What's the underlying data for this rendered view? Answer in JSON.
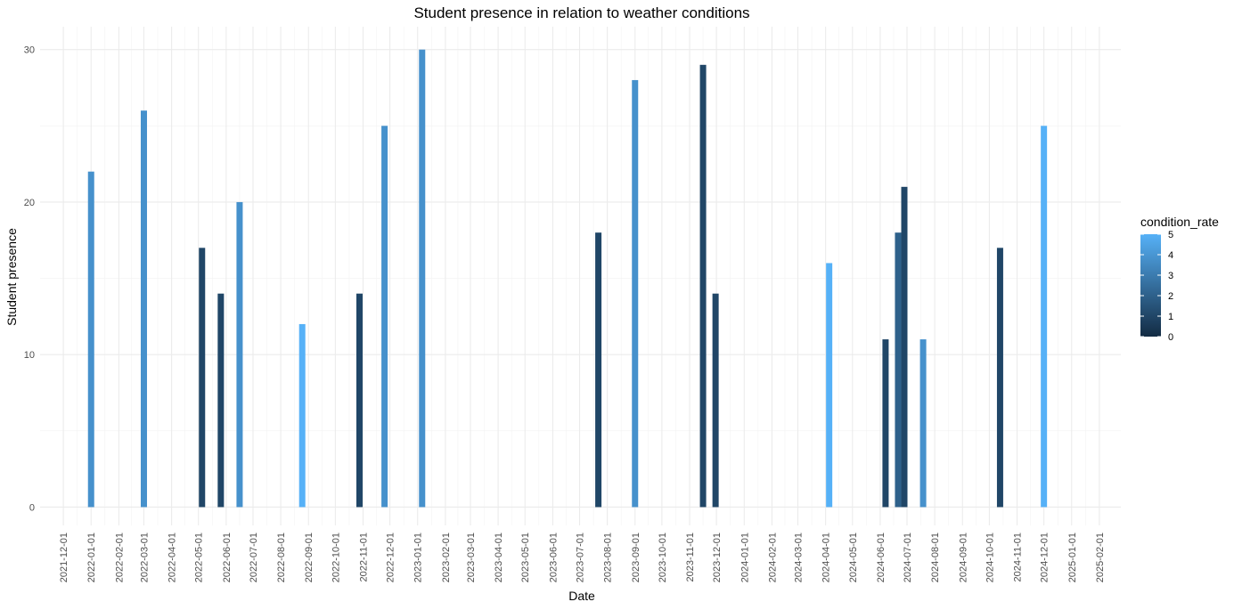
{
  "chart_data": {
    "type": "bar",
    "title": "Student presence in relation to weather conditions",
    "xlabel": "Date",
    "ylabel": "Student presence",
    "ylim": [
      -1.2,
      31.5
    ],
    "y_ticks": [
      0,
      10,
      20,
      30
    ],
    "x_range": [
      "2021-11-05",
      "2025-02-25"
    ],
    "x_ticks": [
      "2021-12-01",
      "2022-01-01",
      "2022-02-01",
      "2022-03-01",
      "2022-04-01",
      "2022-05-01",
      "2022-06-01",
      "2022-07-01",
      "2022-08-01",
      "2022-09-01",
      "2022-10-01",
      "2022-11-01",
      "2022-12-01",
      "2023-01-01",
      "2023-02-01",
      "2023-03-01",
      "2023-04-01",
      "2023-05-01",
      "2023-06-01",
      "2023-07-01",
      "2023-08-01",
      "2023-09-01",
      "2023-10-01",
      "2023-11-01",
      "2023-12-01",
      "2024-01-01",
      "2024-02-01",
      "2024-03-01",
      "2024-04-01",
      "2024-05-01",
      "2024-06-01",
      "2024-07-01",
      "2024-08-01",
      "2024-09-01",
      "2024-10-01",
      "2024-11-01",
      "2024-12-01",
      "2025-01-01",
      "2025-02-01"
    ],
    "grid": true,
    "legend_position": "right",
    "points": [
      {
        "date": "2022-01-01",
        "value": 22,
        "condition_rate": 3.8
      },
      {
        "date": "2022-03-01",
        "value": 26,
        "condition_rate": 3.8
      },
      {
        "date": "2022-05-05",
        "value": 17,
        "condition_rate": 1
      },
      {
        "date": "2022-05-26",
        "value": 14,
        "condition_rate": 1
      },
      {
        "date": "2022-06-16",
        "value": 20,
        "condition_rate": 3.8
      },
      {
        "date": "2022-08-25",
        "value": 12,
        "condition_rate": 5
      },
      {
        "date": "2022-10-28",
        "value": 14,
        "condition_rate": 1
      },
      {
        "date": "2022-11-25",
        "value": 25,
        "condition_rate": 3.8
      },
      {
        "date": "2023-01-06",
        "value": 30,
        "condition_rate": 3.8
      },
      {
        "date": "2023-07-22",
        "value": 18,
        "condition_rate": 1
      },
      {
        "date": "2023-09-01",
        "value": 28,
        "condition_rate": 3.8
      },
      {
        "date": "2023-11-16",
        "value": 29,
        "condition_rate": 1
      },
      {
        "date": "2023-11-30",
        "value": 14,
        "condition_rate": 1
      },
      {
        "date": "2024-04-05",
        "value": 16,
        "condition_rate": 5
      },
      {
        "date": "2024-06-07",
        "value": 11,
        "condition_rate": 1
      },
      {
        "date": "2024-06-21",
        "value": 18,
        "condition_rate": 2
      },
      {
        "date": "2024-06-28",
        "value": 21,
        "condition_rate": 1
      },
      {
        "date": "2024-07-19",
        "value": 11,
        "condition_rate": 3.8
      },
      {
        "date": "2024-10-13",
        "value": 17,
        "condition_rate": 1
      },
      {
        "date": "2024-12-01",
        "value": 25,
        "condition_rate": 5
      }
    ],
    "legend": {
      "title": "condition_rate",
      "ticks": [
        0,
        1,
        2,
        3,
        4,
        5
      ],
      "range": [
        0,
        5
      ],
      "color_low": "#132B43",
      "color_high": "#56B1F7"
    }
  }
}
